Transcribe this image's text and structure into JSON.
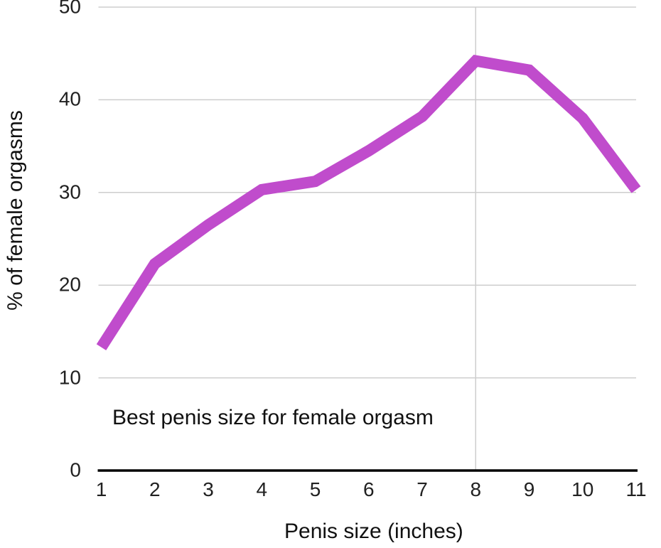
{
  "chart_data": {
    "type": "line",
    "annotation": "Best penis size for female orgasm",
    "xlabel": "Penis size (inches)",
    "ylabel": "% of female orgasms",
    "x": [
      1,
      2,
      3,
      4,
      5,
      6,
      7,
      8,
      9,
      10,
      11
    ],
    "series": [
      {
        "name": "% of female orgasms",
        "values": [
          13.3,
          22.3,
          26.5,
          30.3,
          31.2,
          34.5,
          38.2,
          44.2,
          43.2,
          38.0,
          30.3
        ]
      }
    ],
    "xticks": [
      1,
      2,
      3,
      4,
      5,
      6,
      7,
      8,
      9,
      10,
      11
    ],
    "yticks": [
      0,
      10,
      20,
      30,
      40,
      50
    ],
    "xlim": [
      1,
      11
    ],
    "ylim": [
      0,
      50
    ],
    "peak_gridline_x": 8,
    "grid": "horizontal gridlines at 10,20,30,40,50 plus one vertical gridline at x=8",
    "legend_position": "none",
    "line_color": "#c04ccc",
    "grid_color": "#cdcdcd",
    "axis_color": "#000000",
    "text_color": "#212121"
  }
}
